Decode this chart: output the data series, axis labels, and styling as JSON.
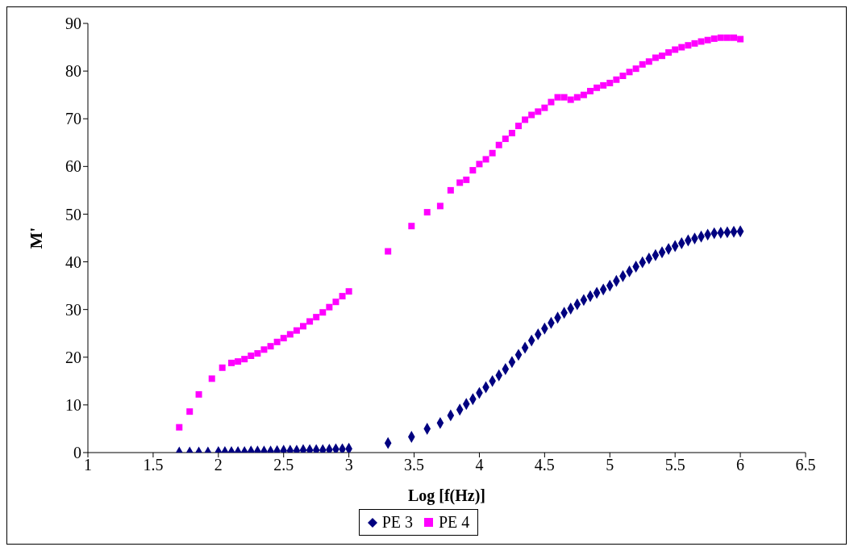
{
  "chart_data": {
    "type": "scatter",
    "xlabel": "Log [f(Hz)]",
    "ylabel": "M'",
    "xlim": [
      1,
      6.5
    ],
    "xticks": [
      1,
      1.5,
      2,
      2.5,
      3,
      3.5,
      4,
      4.5,
      5,
      5.5,
      6,
      6.5
    ],
    "ylim": [
      0,
      90
    ],
    "yticks": [
      0,
      10,
      20,
      30,
      40,
      50,
      60,
      70,
      80,
      90
    ],
    "grid": false,
    "legend": "bottom",
    "series": [
      {
        "name": "PE 3",
        "color": "#000080",
        "marker": "diamond",
        "x": [
          1.7,
          1.78,
          1.85,
          1.92,
          2.0,
          2.05,
          2.1,
          2.15,
          2.2,
          2.25,
          2.3,
          2.35,
          2.4,
          2.45,
          2.5,
          2.55,
          2.6,
          2.65,
          2.7,
          2.75,
          2.8,
          2.85,
          2.9,
          2.95,
          3.0,
          3.3,
          3.48,
          3.6,
          3.7,
          3.78,
          3.85,
          3.9,
          3.95,
          4.0,
          4.05,
          4.1,
          4.15,
          4.2,
          4.25,
          4.3,
          4.35,
          4.4,
          4.45,
          4.5,
          4.55,
          4.6,
          4.65,
          4.7,
          4.75,
          4.8,
          4.85,
          4.9,
          4.95,
          5.0,
          5.05,
          5.1,
          5.15,
          5.2,
          5.25,
          5.3,
          5.35,
          5.4,
          5.45,
          5.5,
          5.55,
          5.6,
          5.65,
          5.7,
          5.75,
          5.8,
          5.85,
          5.9,
          5.95,
          6.0
        ],
        "values": [
          0,
          0,
          0,
          0,
          0.1,
          0.1,
          0.1,
          0.1,
          0.1,
          0.2,
          0.2,
          0.2,
          0.2,
          0.3,
          0.4,
          0.4,
          0.4,
          0.5,
          0.5,
          0.5,
          0.5,
          0.6,
          0.7,
          0.7,
          0.8,
          2,
          3.3,
          5,
          6.2,
          7.8,
          9,
          10.2,
          11.2,
          12.5,
          13.7,
          15,
          16.2,
          17.5,
          19,
          20.5,
          22,
          23.5,
          24.8,
          26,
          27.2,
          28.3,
          29.3,
          30.2,
          31.1,
          32,
          32.8,
          33.5,
          34.2,
          35,
          36,
          37,
          38,
          39,
          39.9,
          40.7,
          41.4,
          42,
          42.7,
          43.3,
          43.9,
          44.5,
          44.9,
          45.3,
          45.7,
          46,
          46.1,
          46.2,
          46.3,
          46.4
        ]
      },
      {
        "name": "PE 4",
        "color": "#ff00ff",
        "marker": "square",
        "x": [
          1.7,
          1.78,
          1.85,
          1.95,
          2.03,
          2.1,
          2.15,
          2.2,
          2.25,
          2.3,
          2.35,
          2.4,
          2.45,
          2.5,
          2.55,
          2.6,
          2.65,
          2.7,
          2.75,
          2.8,
          2.85,
          2.9,
          2.95,
          3.0,
          3.3,
          3.48,
          3.6,
          3.7,
          3.78,
          3.85,
          3.9,
          3.95,
          4.0,
          4.05,
          4.1,
          4.15,
          4.2,
          4.25,
          4.3,
          4.35,
          4.4,
          4.45,
          4.5,
          4.55,
          4.6,
          4.65,
          4.7,
          4.75,
          4.8,
          4.85,
          4.9,
          4.95,
          5.0,
          5.05,
          5.1,
          5.15,
          5.2,
          5.25,
          5.3,
          5.35,
          5.4,
          5.45,
          5.5,
          5.55,
          5.6,
          5.65,
          5.7,
          5.75,
          5.8,
          5.85,
          5.9,
          5.95,
          6.0
        ],
        "values": [
          5.3,
          8.6,
          12.2,
          15.5,
          17.8,
          18.8,
          19.1,
          19.6,
          20.3,
          20.8,
          21.6,
          22.3,
          23.2,
          24,
          24.8,
          25.6,
          26.5,
          27.5,
          28.4,
          29.4,
          30.5,
          31.6,
          32.8,
          33.8,
          42.2,
          47.5,
          50.4,
          51.7,
          55,
          56.6,
          57.2,
          59.2,
          60.5,
          61.5,
          62.8,
          64.5,
          65.8,
          67,
          68.5,
          69.8,
          70.8,
          71.5,
          72.3,
          73.5,
          74.5,
          74.5,
          74,
          74.5,
          75,
          75.8,
          76.5,
          77,
          77.5,
          78.2,
          79,
          79.8,
          80.5,
          81.4,
          82,
          82.8,
          83.2,
          83.9,
          84.5,
          85,
          85.4,
          85.8,
          86.2,
          86.5,
          86.8,
          87,
          87,
          87,
          86.7
        ]
      }
    ]
  }
}
